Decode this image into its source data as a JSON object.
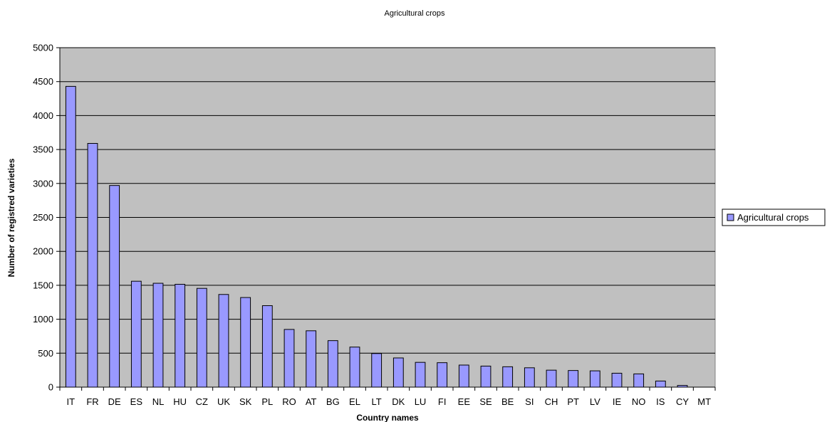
{
  "chart_data": {
    "type": "bar",
    "title": "Agricultural crops",
    "xlabel": "Country names",
    "ylabel": "Number of registred varieties",
    "categories": [
      "IT",
      "FR",
      "DE",
      "ES",
      "NL",
      "HU",
      "CZ",
      "UK",
      "SK",
      "PL",
      "RO",
      "AT",
      "BG",
      "EL",
      "LT",
      "DK",
      "LU",
      "FI",
      "EE",
      "SE",
      "BE",
      "SI",
      "CH",
      "PT",
      "LV",
      "IE",
      "NO",
      "IS",
      "CY",
      "MT"
    ],
    "series": [
      {
        "name": "Agricultural crops",
        "color": "#9999ff",
        "values": [
          4430,
          3590,
          2970,
          1560,
          1530,
          1515,
          1455,
          1365,
          1320,
          1200,
          850,
          830,
          685,
          590,
          495,
          430,
          365,
          360,
          325,
          310,
          300,
          285,
          250,
          245,
          240,
          205,
          195,
          90,
          25,
          0
        ]
      }
    ],
    "ylim": [
      0,
      5000
    ],
    "ytick_step": 500,
    "grid": true,
    "plot_background": "#c0c0c0",
    "legend_position": "right"
  }
}
